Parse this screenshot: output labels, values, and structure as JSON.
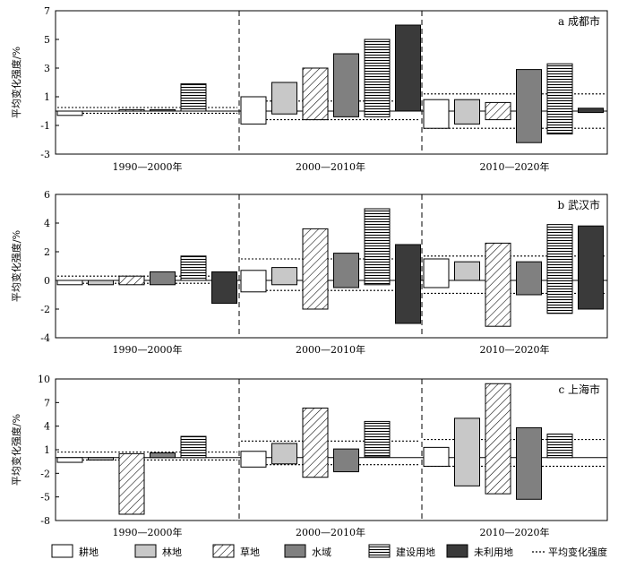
{
  "ylabel": "平均变化强度/%",
  "periods": [
    "1990—2000年",
    "2000—2010年",
    "2010—2020年"
  ],
  "legend": [
    {
      "key": "farm",
      "label": "耕地"
    },
    {
      "key": "forest",
      "label": "林地"
    },
    {
      "key": "grass",
      "label": "草地"
    },
    {
      "key": "water",
      "label": "水域"
    },
    {
      "key": "built",
      "label": "建设用地"
    },
    {
      "key": "unused",
      "label": "未利用地"
    },
    {
      "key": "avg",
      "label": "平均变化强度"
    }
  ],
  "colors": {
    "farm": "#ffffff",
    "forest": "#c8c8c8",
    "grass": "#ffffff",
    "water": "#808080",
    "built": "#ffffff",
    "unused": "#3a3a3a",
    "stroke": "#000000"
  },
  "chart_data": [
    {
      "type": "bar",
      "title": "a 成都市",
      "ylim": [
        -3,
        7
      ],
      "yticks": [
        "-3",
        "-1",
        "1",
        "3",
        "5",
        "7"
      ],
      "yticks_values": [
        -3,
        -1,
        1,
        3,
        5,
        7
      ],
      "categories": [
        "耕地",
        "林地",
        "草地",
        "水域",
        "建设用地",
        "未利用地"
      ],
      "series": [
        {
          "name": "1990—2000年",
          "values": [
            [
              -0.3,
              0
            ],
            [
              0,
              0
            ],
            [
              0,
              0.1
            ],
            [
              0,
              0.1
            ],
            [
              0,
              1.9
            ],
            [
              0,
              0
            ]
          ],
          "avg": [
            -0.15,
            0.25
          ]
        },
        {
          "name": "2000—2010年",
          "values": [
            [
              -0.9,
              1.0
            ],
            [
              -0.2,
              2.0
            ],
            [
              -0.6,
              3.0
            ],
            [
              -0.4,
              4.0
            ],
            [
              -0.4,
              5.0
            ],
            [
              0,
              6.0
            ]
          ],
          "avg": [
            -0.6,
            0.7
          ]
        },
        {
          "name": "2010—2020年",
          "values": [
            [
              -1.2,
              0.8
            ],
            [
              -0.9,
              0.8
            ],
            [
              -0.6,
              0.6
            ],
            [
              -2.2,
              2.9
            ],
            [
              -1.6,
              3.3
            ],
            [
              -0.1,
              0.2
            ]
          ],
          "avg": [
            -1.2,
            1.2
          ]
        }
      ]
    },
    {
      "type": "bar",
      "title": "b 武汉市",
      "ylim": [
        -4,
        6
      ],
      "yticks": [
        "-4",
        "-2",
        "0",
        "2",
        "4",
        "6"
      ],
      "yticks_values": [
        -4,
        -2,
        0,
        2,
        4,
        6
      ],
      "categories": [
        "耕地",
        "林地",
        "草地",
        "水域",
        "建设用地",
        "未利用地"
      ],
      "series": [
        {
          "name": "1990—2000年",
          "values": [
            [
              -0.3,
              0
            ],
            [
              -0.3,
              0
            ],
            [
              -0.3,
              0.3
            ],
            [
              -0.3,
              0.6
            ],
            [
              0,
              1.7
            ],
            [
              -1.6,
              0.6
            ]
          ],
          "avg": [
            -0.2,
            0.3
          ]
        },
        {
          "name": "2000—2010年",
          "values": [
            [
              -0.8,
              0.7
            ],
            [
              -0.3,
              0.9
            ],
            [
              -2.0,
              3.6
            ],
            [
              -0.5,
              1.9
            ],
            [
              -0.3,
              5.0
            ],
            [
              -3.0,
              2.5
            ]
          ],
          "avg": [
            -0.7,
            1.5
          ]
        },
        {
          "name": "2010—2020年",
          "values": [
            [
              -0.5,
              1.5
            ],
            [
              0,
              1.3
            ],
            [
              -3.2,
              2.6
            ],
            [
              -1.0,
              1.3
            ],
            [
              -2.3,
              3.9
            ],
            [
              -2.0,
              3.8
            ]
          ],
          "avg": [
            -0.9,
            1.7
          ]
        }
      ]
    },
    {
      "type": "bar",
      "title": "c 上海市",
      "ylim": [
        -8,
        10
      ],
      "yticks": [
        "-8",
        "-5",
        "-2",
        "1",
        "4",
        "7",
        "10"
      ],
      "yticks_values": [
        -8,
        -5,
        -2,
        1,
        4,
        7,
        10
      ],
      "categories": [
        "耕地",
        "林地",
        "草地",
        "水域",
        "建设用地",
        "未利用地"
      ],
      "series": [
        {
          "name": "1990—2000年",
          "values": [
            [
              -0.6,
              0
            ],
            [
              -0.3,
              0
            ],
            [
              -7.2,
              0.5
            ],
            [
              0,
              0.6
            ],
            [
              0,
              2.7
            ],
            [
              0,
              0
            ]
          ],
          "avg": [
            -0.3,
            0.7
          ]
        },
        {
          "name": "2000—2010年",
          "values": [
            [
              -1.2,
              0.8
            ],
            [
              -0.8,
              1.8
            ],
            [
              -2.5,
              6.3
            ],
            [
              -1.8,
              1.1
            ],
            [
              0.1,
              4.6
            ],
            [
              0,
              0
            ]
          ],
          "avg": [
            -0.9,
            2.1
          ]
        },
        {
          "name": "2010—2020年",
          "values": [
            [
              -1.1,
              1.3
            ],
            [
              -3.6,
              5.0
            ],
            [
              -4.6,
              9.4
            ],
            [
              -5.3,
              3.8
            ],
            [
              0,
              3.0
            ],
            [
              0,
              0
            ]
          ],
          "avg": [
            -1.1,
            2.3
          ]
        }
      ]
    }
  ]
}
